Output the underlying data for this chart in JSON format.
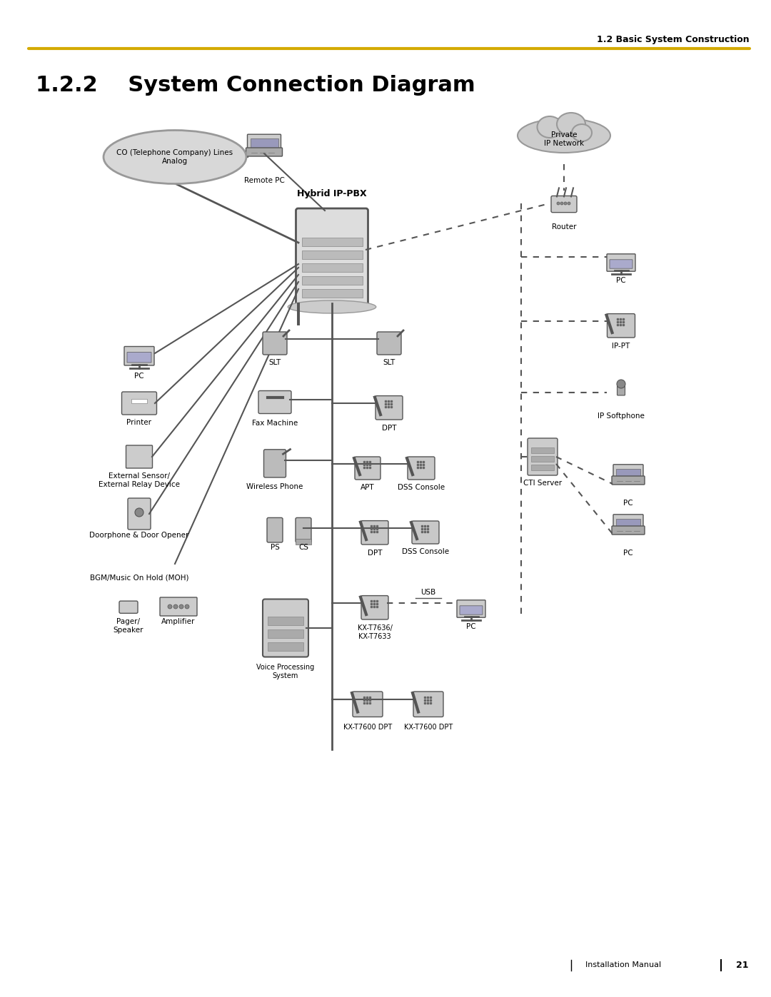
{
  "title_section": "1.2.2    System Connection Diagram",
  "header_text": "1.2 Basic System Construction",
  "footer_text": "Installation Manual",
  "footer_page": "21",
  "header_line_color": "#D4AA00",
  "bg_color": "#FFFFFF",
  "main_title_fontsize": 22,
  "header_fontsize": 9,
  "label_fontsize": 8,
  "small_fontsize": 7,
  "hybrid_label": "Hybrid IP-PBX",
  "co_label": "CO (Telephone Company) Lines\nAnalog",
  "remote_pc_label": "Remote PC",
  "private_net_label": "Private\nIP Network",
  "router_label": "Router",
  "pc_label": "PC",
  "ip_pt_label": "IP-PT",
  "ip_softphone_label": "IP Softphone",
  "cti_server_label": "CTI Server",
  "slt_label": "SLT",
  "slt2_label": "SLT",
  "fax_label": "Fax Machine",
  "wireless_label": "Wireless Phone",
  "apt_label": "APT",
  "dss1_label": "DSS Console",
  "dpt_label": "DPT",
  "dss2_label": "DSS Console",
  "ps_label": "PS",
  "cs_label": "CS",
  "kx7636_label": "KX-T7636/\nKX-T7633",
  "usb_label": "USB",
  "pc3_label": "PC",
  "vps_label": "Voice Processing\nSystem",
  "kx7600a_label": "KX-T7600 DPT",
  "kx7600b_label": "KX-T7600 DPT",
  "dpt2_label": "DPT",
  "pc_left_label": "PC",
  "printer_label": "Printer",
  "ext_sensor_label": "External Sensor/\nExternal Relay Device",
  "doorphone_label": "Doorphone & Door Opener",
  "bgm_label": "BGM/Music On Hold (MOH)",
  "pager_label": "Pager/\nSpeaker",
  "amplifier_label": "Amplifier",
  "pc_cti1_label": "PC",
  "pc_cti2_label": "PC"
}
